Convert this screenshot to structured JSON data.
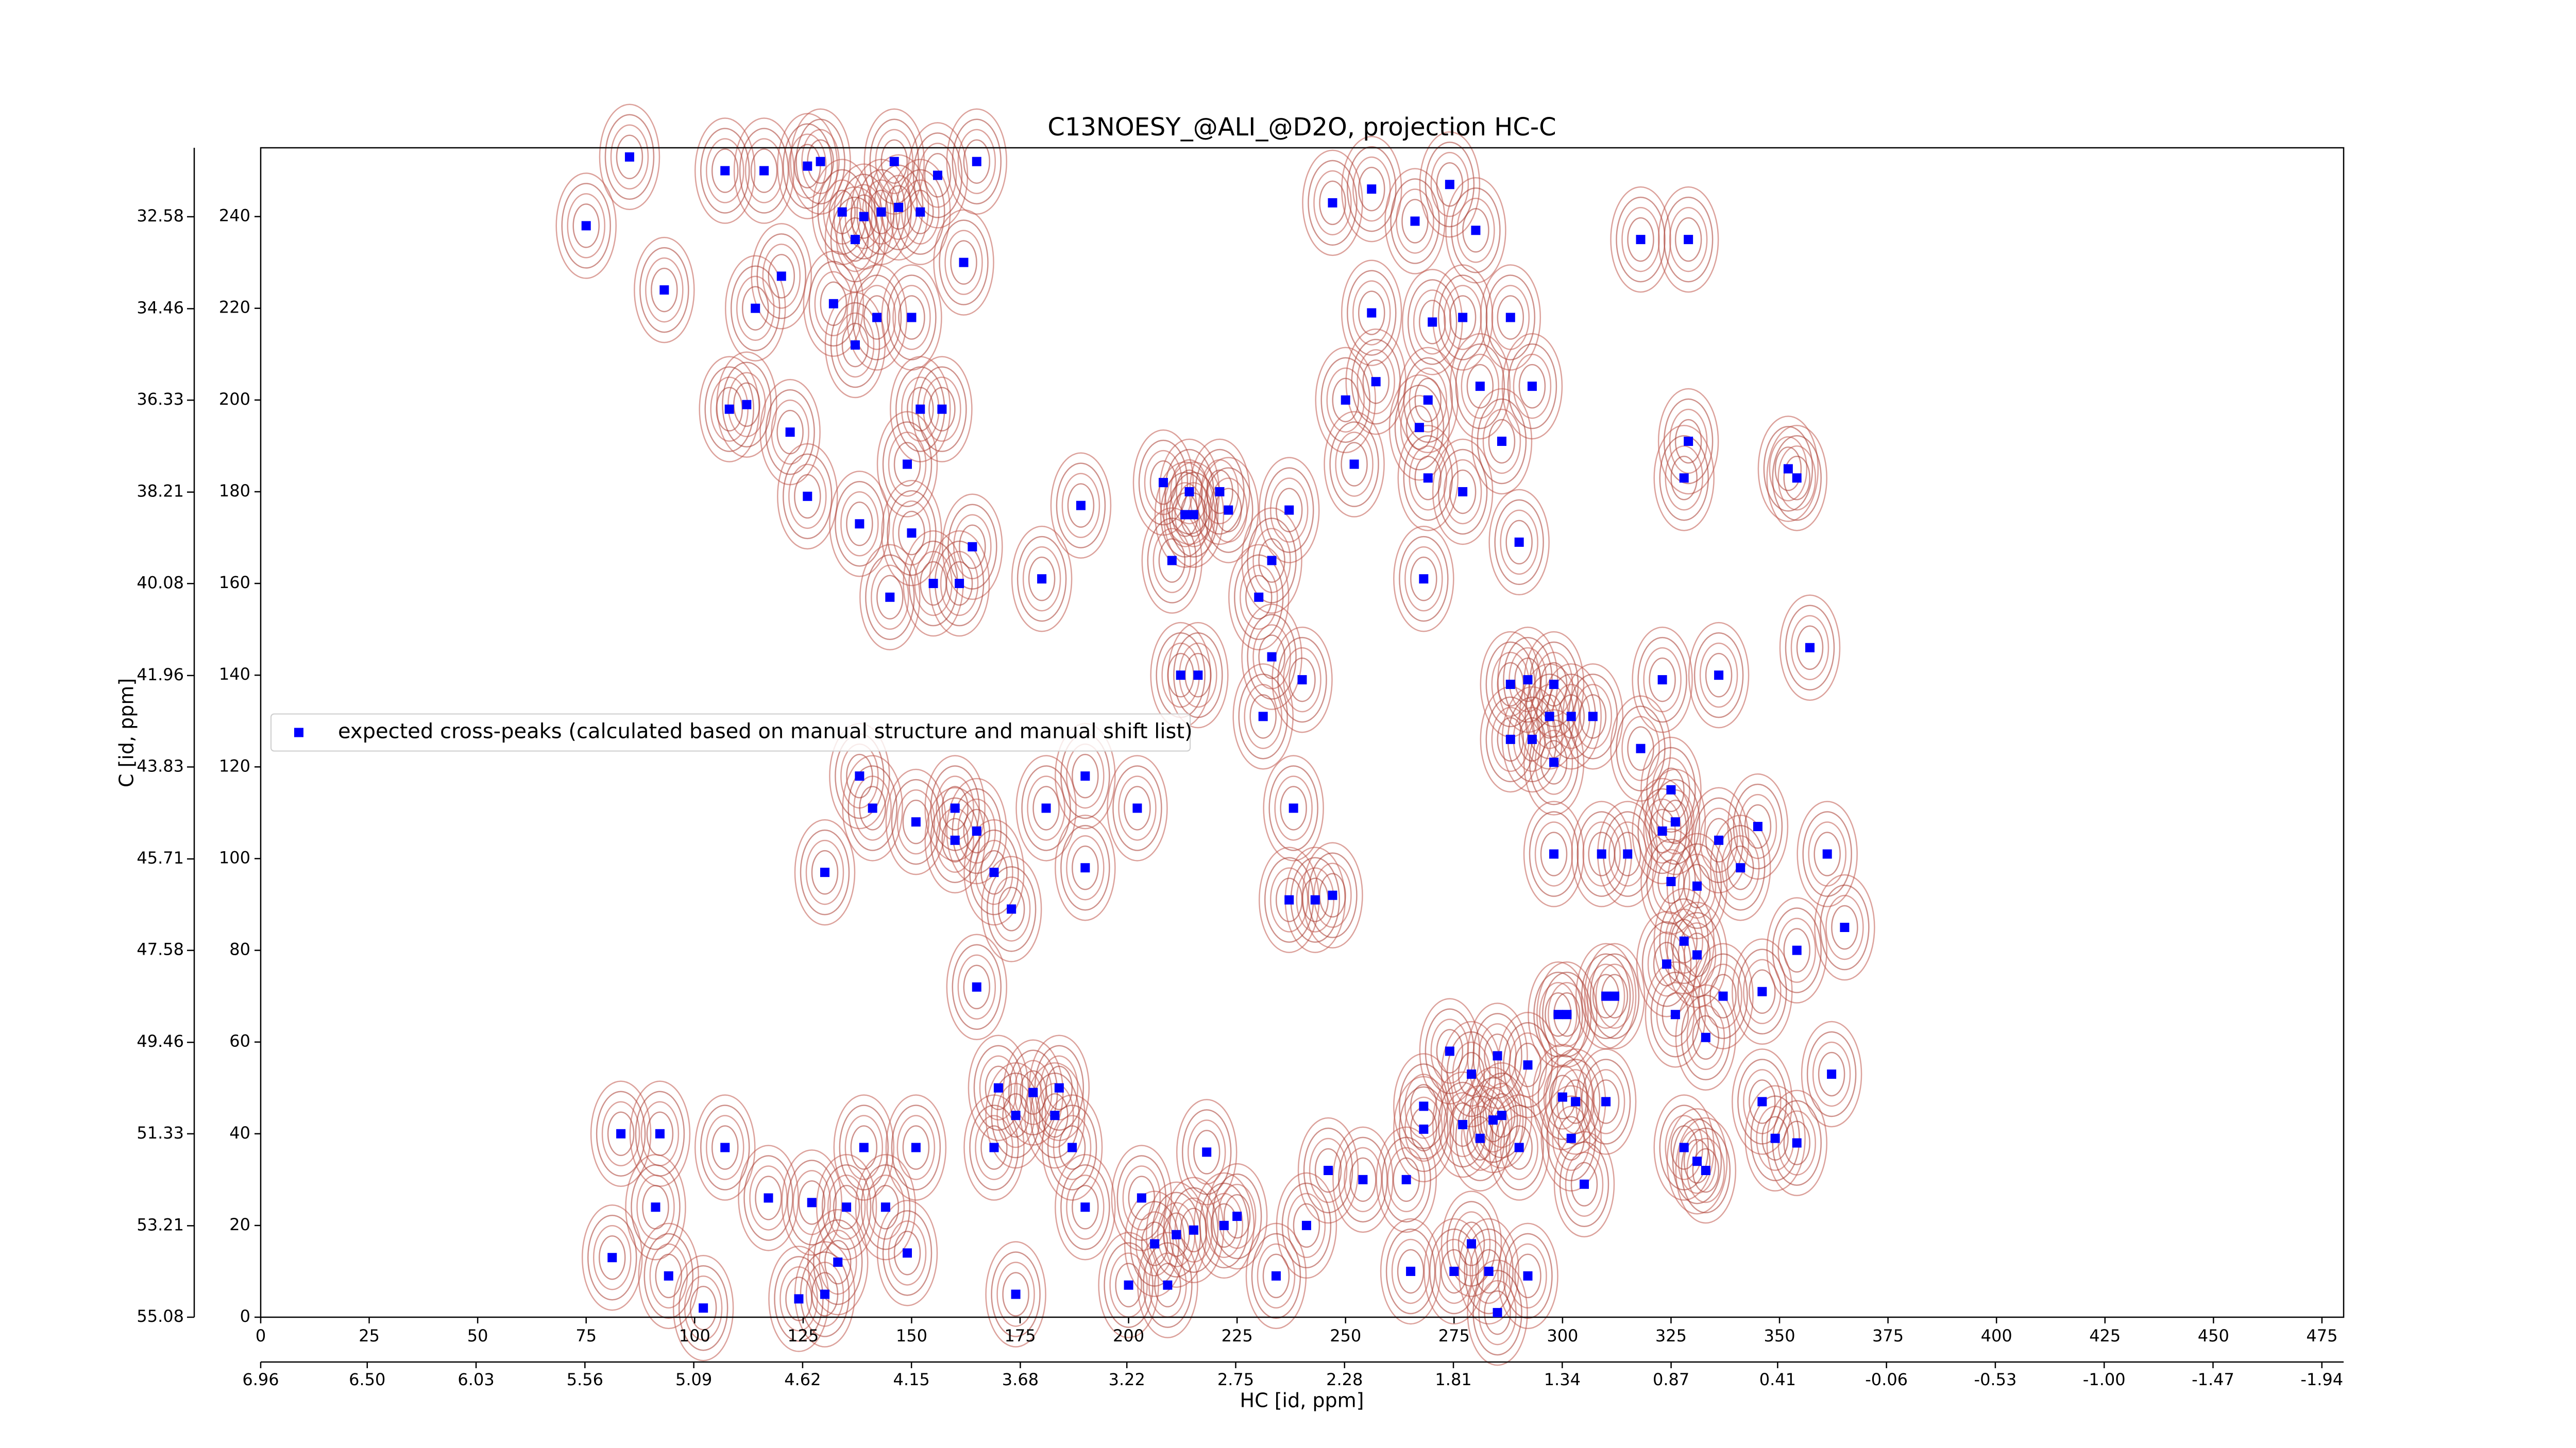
{
  "chart_data": {
    "type": "scatter",
    "title": "C13NOESY_@ALI_@D2O, projection HC-C",
    "xlabel": "HC [id, ppm]",
    "ylabel": "C [id, ppm]",
    "xlim": [
      0,
      480
    ],
    "ylim": [
      0,
      255
    ],
    "xticks": [
      0,
      25,
      50,
      75,
      100,
      125,
      150,
      175,
      200,
      225,
      250,
      275,
      300,
      325,
      350,
      375,
      400,
      425,
      450,
      475
    ],
    "yticks": [
      0,
      20,
      40,
      60,
      80,
      100,
      120,
      140,
      160,
      180,
      200,
      220,
      240
    ],
    "x2lim": [
      6.96,
      -2.034
    ],
    "x2ticks": [
      6.96,
      {
        "value": 6.5,
        "label": "6.50"
      },
      6.03,
      5.56,
      5.09,
      4.62,
      4.15,
      3.68,
      3.22,
      2.75,
      2.28,
      1.81,
      1.34,
      0.87,
      0.41,
      -0.06,
      -0.53,
      {
        "value": -1,
        "label": "-1.00"
      },
      -1.47,
      -1.94
    ],
    "y2lim": [
      55.08,
      31.17
    ],
    "y2ticks": [
      55.08,
      53.21,
      51.33,
      49.46,
      47.58,
      45.71,
      43.83,
      41.96,
      40.08,
      38.21,
      36.33,
      34.46,
      32.58
    ],
    "legend": "center left",
    "series": [
      {
        "name": "expected cross-peaks (calculated based on manual structure and manual shift list)",
        "color": "#0000ff",
        "x": [
          85,
          107,
          116,
          75,
          93,
          120,
          114,
          129,
          126,
          134,
          139,
          143,
          147,
          152,
          137,
          132,
          137,
          142,
          150,
          162,
          156,
          146,
          165,
          108,
          112,
          122,
          152,
          157,
          126,
          149,
          138,
          150,
          164,
          155,
          145,
          161,
          180,
          189,
          208,
          214,
          221,
          213,
          215,
          223,
          237,
          210,
          233,
          230,
          233,
          212,
          216,
          240,
          231,
          247,
          256,
          266,
          274,
          280,
          256,
          270,
          277,
          288,
          250,
          257,
          269,
          281,
          293,
          286,
          267,
          252,
          269,
          277,
          290,
          268,
          318,
          329,
          329,
          328,
          352,
          354,
          288,
          292,
          297,
          302,
          298,
          307,
          318,
          323,
          336,
          357,
          288,
          293,
          298,
          325,
          298,
          309,
          315,
          323,
          326,
          336,
          345,
          341,
          361,
          325,
          331,
          328,
          331,
          365,
          354,
          324,
          299,
          301,
          310,
          312,
          337,
          346,
          326,
          333,
          362,
          274,
          285,
          279,
          292,
          300,
          303,
          310,
          268,
          268,
          277,
          281,
          284,
          286,
          290,
          302,
          305,
          328,
          331,
          333,
          346,
          349,
          354,
          254,
          264,
          246,
          241,
          279,
          275,
          283,
          292,
          265,
          285,
          83,
          92,
          107,
          139,
          151,
          169,
          187,
          170,
          178,
          184,
          174,
          183,
          190,
          203,
          211,
          206,
          215,
          222,
          225,
          218,
          234,
          200,
          209,
          91,
          81,
          94,
          102,
          117,
          127,
          135,
          144,
          133,
          130,
          124,
          149,
          174,
          138,
          141,
          151,
          160,
          160,
          165,
          130,
          169,
          173,
          181,
          190,
          190,
          202,
          238,
          237,
          243,
          247,
          165
        ],
        "values": [
          253,
          250,
          250,
          238,
          224,
          227,
          220,
          252,
          251,
          241,
          240,
          241,
          242,
          241,
          235,
          221,
          212,
          218,
          218,
          230,
          249,
          252,
          252,
          198,
          199,
          193,
          198,
          198,
          179,
          186,
          173,
          171,
          168,
          160,
          157,
          160,
          161,
          177,
          182,
          180,
          180,
          175,
          175,
          176,
          176,
          165,
          165,
          157,
          144,
          140,
          140,
          139,
          131,
          243,
          246,
          239,
          247,
          237,
          219,
          217,
          218,
          218,
          200,
          204,
          200,
          203,
          203,
          191,
          194,
          186,
          183,
          180,
          169,
          161,
          235,
          235,
          191,
          183,
          185,
          183,
          138,
          139,
          131,
          131,
          138,
          131,
          124,
          139,
          140,
          146,
          126,
          126,
          121,
          115,
          101,
          101,
          101,
          106,
          108,
          104,
          107,
          98,
          101,
          95,
          94,
          82,
          79,
          85,
          80,
          77,
          66,
          66,
          70,
          70,
          70,
          71,
          66,
          61,
          53,
          58,
          57,
          53,
          55,
          48,
          47,
          47,
          46,
          41,
          42,
          39,
          43,
          44,
          37,
          39,
          29,
          37,
          34,
          32,
          47,
          39,
          38,
          30,
          30,
          32,
          20,
          16,
          10,
          10,
          9,
          10,
          1,
          40,
          40,
          37,
          37,
          37,
          37,
          37,
          50,
          49,
          50,
          44,
          44,
          24,
          26,
          18,
          16,
          19,
          20,
          22,
          36,
          9,
          7,
          7,
          24,
          13,
          9,
          2,
          26,
          25,
          24,
          24,
          12,
          5,
          4,
          14,
          5,
          118,
          111,
          108,
          111,
          104,
          106,
          97,
          97,
          89,
          111,
          98,
          118,
          111,
          111,
          91,
          91,
          92,
          72
        ]
      }
    ]
  }
}
